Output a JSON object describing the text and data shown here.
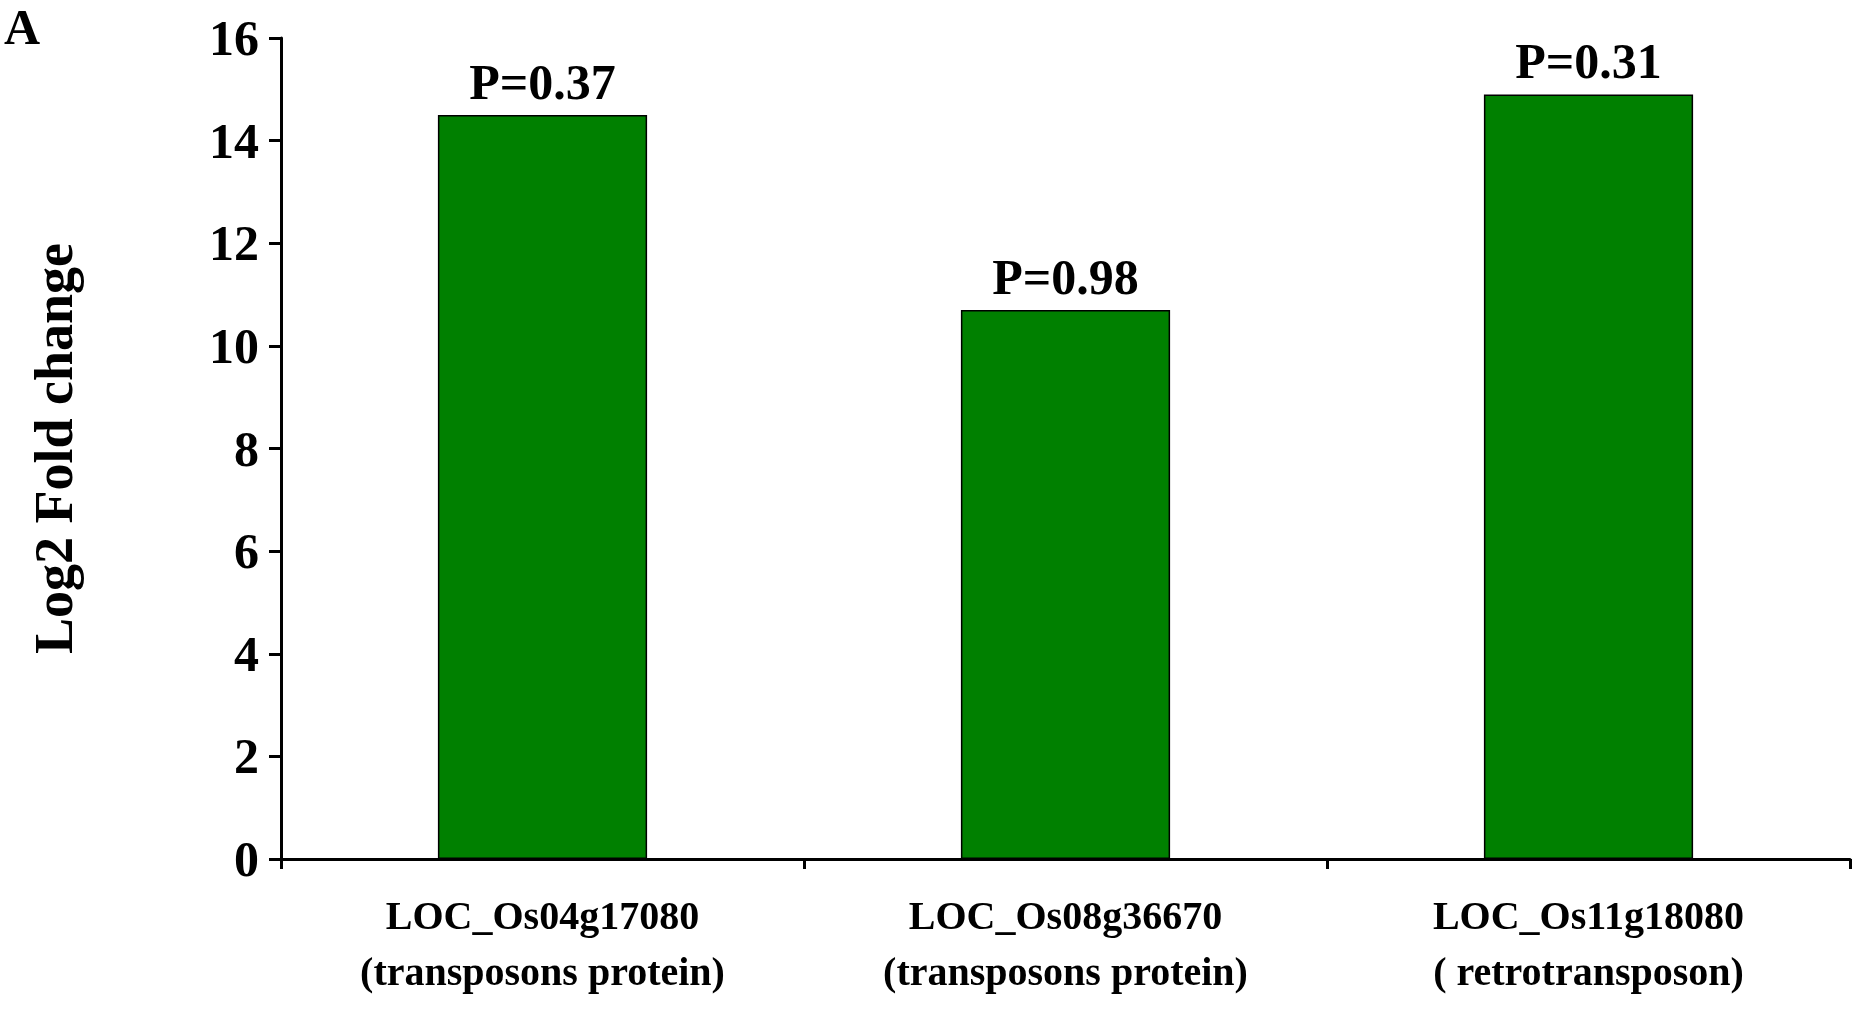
{
  "chart_data": {
    "type": "bar",
    "ylabel": "Log2 Fold change",
    "categories": [
      "LOC_Os04g17080\n(transposons protein)",
      "LOC_Os08g36670\n(transposons protein)",
      "LOC_Os11g18080\n( retrotransposon)"
    ],
    "values": [
      14.5,
      10.7,
      14.9
    ],
    "color": "#008000",
    "ylim": [
      0,
      16
    ],
    "yticks": [
      0,
      2,
      4,
      6,
      8,
      10,
      12,
      14,
      16
    ],
    "grid": false,
    "annotations": [
      {
        "text": "P=0.37",
        "x": "LOC_Os04g17080\n(transposons protein)",
        "y": 14.5
      },
      {
        "text": "P=0.98",
        "x": "LOC_Os08g36670\n(transposons protein)",
        "y": 10.7
      },
      {
        "text": "P=0.31",
        "x": "LOC_Os11g18080\n( retrotransposon)",
        "y": 14.9
      },
      "A"
    ]
  }
}
